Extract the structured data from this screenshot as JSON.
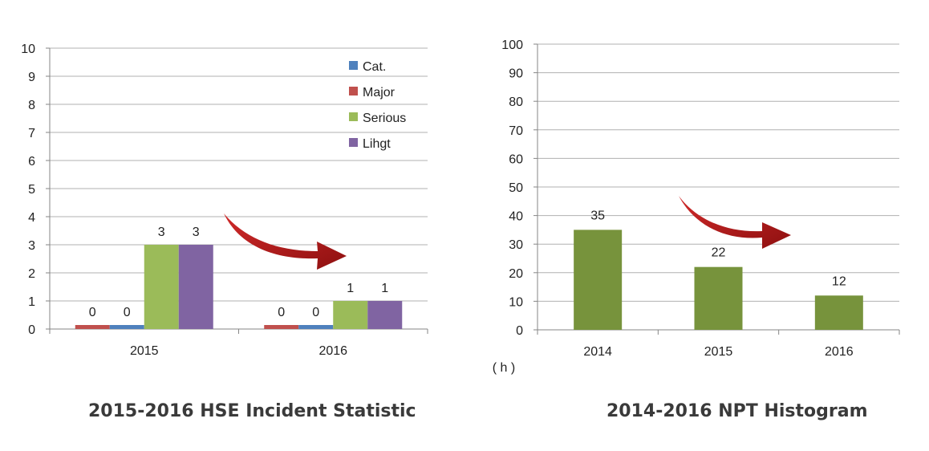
{
  "chart_data": [
    {
      "type": "bar",
      "title": "2015-2016 HSE Incident Statistic",
      "categories": [
        "2015",
        "2016"
      ],
      "series": [
        {
          "name": "Cat.",
          "color": "#4f81bd",
          "values": [
            0,
            0
          ]
        },
        {
          "name": "Major",
          "color": "#c0504d",
          "values": [
            0,
            0
          ]
        },
        {
          "name": "Serious",
          "color": "#9bbb59",
          "values": [
            3,
            1
          ]
        },
        {
          "name": "Lihgt",
          "color": "#8064a2",
          "values": [
            3,
            1
          ]
        }
      ],
      "data_label_order": [
        "Major",
        "Cat.",
        "Serious",
        "Lihgt"
      ],
      "ylim": [
        0,
        10
      ],
      "yticks": [
        0,
        1,
        2,
        3,
        4,
        5,
        6,
        7,
        8,
        9,
        10
      ],
      "grid": true,
      "legend": "top-right",
      "xlabel": "",
      "ylabel": "",
      "annotation": "downward-trend-arrow"
    },
    {
      "type": "bar",
      "title": "2014-2016 NPT Histogram",
      "categories": [
        "2014",
        "2015",
        "2016"
      ],
      "series": [
        {
          "name": "NPT",
          "color": "#77933c",
          "values": [
            35,
            22,
            12
          ]
        }
      ],
      "ylim": [
        0,
        100
      ],
      "yticks": [
        0,
        10,
        20,
        30,
        40,
        50,
        60,
        70,
        80,
        90,
        100
      ],
      "grid": true,
      "unit_label": "( h )",
      "xlabel": "",
      "ylabel": "",
      "annotation": "downward-trend-arrow"
    }
  ],
  "colors": {
    "arrow": "#b31b1b",
    "grid": "#b0b0b0",
    "axis": "#868686"
  }
}
